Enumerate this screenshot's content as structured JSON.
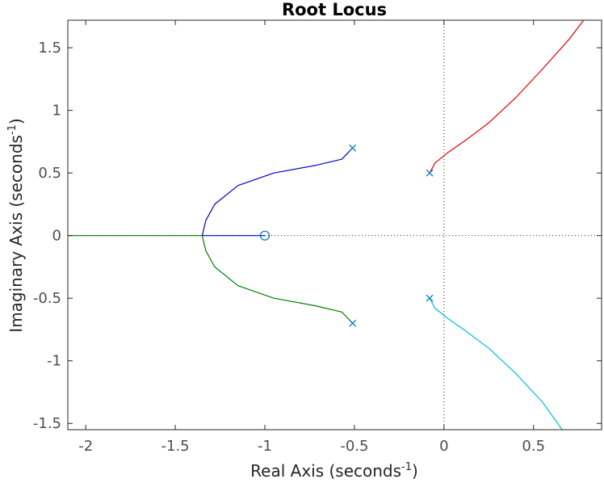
{
  "chart_data": {
    "type": "line",
    "title": "Root Locus",
    "xlabel": {
      "prefix": "Real Axis (seconds",
      "sup": "-1",
      "suffix": ")"
    },
    "ylabel": {
      "prefix": "Imaginary Axis (seconds",
      "sup": "-1",
      "suffix": ")"
    },
    "xlim": [
      -2.1,
      0.88
    ],
    "ylim": [
      -1.55,
      1.72
    ],
    "x_ticks": [
      -2,
      -1.5,
      -1,
      -0.5,
      0,
      0.5
    ],
    "x_tick_labels": [
      "-2",
      "-1.5",
      "-1",
      "-0.5",
      "0",
      "0.5"
    ],
    "y_ticks": [
      -1.5,
      -1,
      -0.5,
      0,
      0.5,
      1,
      1.5
    ],
    "y_tick_labels": [
      "-1.5",
      "-1",
      "-0.5",
      "0",
      "0.5",
      "1",
      "1.5"
    ],
    "grid": false,
    "reference_lines": {
      "x": 0,
      "y": 0,
      "style": "dotted"
    },
    "poles": [
      {
        "x": -0.51,
        "y": 0.7
      },
      {
        "x": -0.51,
        "y": -0.7
      },
      {
        "x": -0.08,
        "y": 0.5
      },
      {
        "x": -0.08,
        "y": -0.5
      }
    ],
    "zeros": [
      {
        "x": -1.0,
        "y": 0.0
      }
    ],
    "series": [
      {
        "color": "#0000cc",
        "points": [
          [
            -0.51,
            0.7
          ],
          [
            -0.57,
            0.61
          ],
          [
            -0.72,
            0.56
          ],
          [
            -0.95,
            0.5
          ],
          [
            -1.15,
            0.4
          ],
          [
            -1.28,
            0.25
          ],
          [
            -1.33,
            0.12
          ],
          [
            -1.35,
            0.0
          ],
          [
            -1.0,
            0.0
          ]
        ]
      },
      {
        "color": "#008000",
        "points": [
          [
            -0.51,
            -0.7
          ],
          [
            -0.57,
            -0.61
          ],
          [
            -0.72,
            -0.56
          ],
          [
            -0.95,
            -0.5
          ],
          [
            -1.15,
            -0.4
          ],
          [
            -1.28,
            -0.25
          ],
          [
            -1.33,
            -0.12
          ],
          [
            -1.35,
            0.0
          ],
          [
            -2.1,
            0.0
          ]
        ]
      },
      {
        "color": "#e00000",
        "points": [
          [
            -0.08,
            0.5
          ],
          [
            -0.05,
            0.58
          ],
          [
            0.02,
            0.66
          ],
          [
            0.12,
            0.76
          ],
          [
            0.25,
            0.9
          ],
          [
            0.4,
            1.1
          ],
          [
            0.55,
            1.33
          ],
          [
            0.7,
            1.57
          ],
          [
            0.78,
            1.72
          ]
        ]
      },
      {
        "color": "#00bfdf",
        "points": [
          [
            -0.08,
            -0.5
          ],
          [
            -0.05,
            -0.58
          ],
          [
            0.02,
            -0.66
          ],
          [
            0.12,
            -0.76
          ],
          [
            0.25,
            -0.9
          ],
          [
            0.4,
            -1.1
          ],
          [
            0.55,
            -1.33
          ],
          [
            0.66,
            -1.55
          ]
        ]
      }
    ],
    "marker_color": "#0072bd"
  }
}
